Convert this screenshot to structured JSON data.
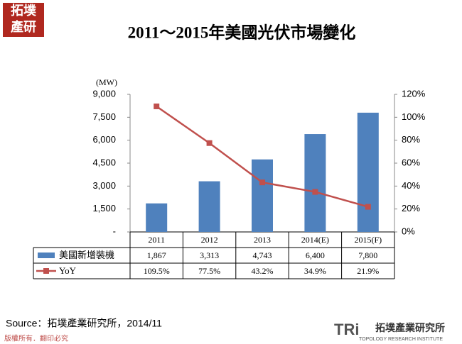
{
  "logo": [
    "拓墣",
    "產研"
  ],
  "chart_data": {
    "type": "bar_line_table",
    "title": "2011～2015年美國光伏市場變化",
    "y_label": "(MW)",
    "categories": [
      "2011",
      "2012",
      "2013",
      "2014(E)",
      "2015(F)"
    ],
    "series": [
      {
        "name": "美國新增裝機",
        "type": "bar",
        "color": "#4f81bd",
        "values": [
          1867,
          3313,
          4743,
          6400,
          7800
        ],
        "value_labels": [
          "1,867",
          "3,313",
          "4,743",
          "6,400",
          "7,800"
        ]
      },
      {
        "name": "YoY",
        "type": "line",
        "axis": "y2",
        "color": "#c0504d",
        "values": [
          109.5,
          77.5,
          43.2,
          34.9,
          21.9
        ],
        "value_labels": [
          "109.5%",
          "77.5%",
          "43.2%",
          "34.9%",
          "21.9%"
        ]
      }
    ],
    "ylim": [
      0,
      9000
    ],
    "yticks": [
      {
        "value": 0,
        "label": "-"
      },
      {
        "value": 1500,
        "label": "1,500"
      },
      {
        "value": 3000,
        "label": "3,000"
      },
      {
        "value": 4500,
        "label": "4,500"
      },
      {
        "value": 6000,
        "label": "6,000"
      },
      {
        "value": 7500,
        "label": "7,500"
      },
      {
        "value": 9000,
        "label": "9,000"
      }
    ],
    "y2lim": [
      0,
      120
    ],
    "y2ticks": [
      {
        "value": 0,
        "label": "0%"
      },
      {
        "value": 20,
        "label": "20%"
      },
      {
        "value": 40,
        "label": "40%"
      },
      {
        "value": 60,
        "label": "60%"
      },
      {
        "value": 80,
        "label": "80%"
      },
      {
        "value": 100,
        "label": "100%"
      },
      {
        "value": 120,
        "label": "120%"
      }
    ]
  },
  "source": "Source：拓墣產業研究所，2014/11",
  "footer": "版權所有．翻印必究",
  "brand": {
    "mark": "TRi",
    "name": "拓墣產業研究所",
    "subtitle": "TOPOLOGY RESEARCH INSTITUTE"
  }
}
